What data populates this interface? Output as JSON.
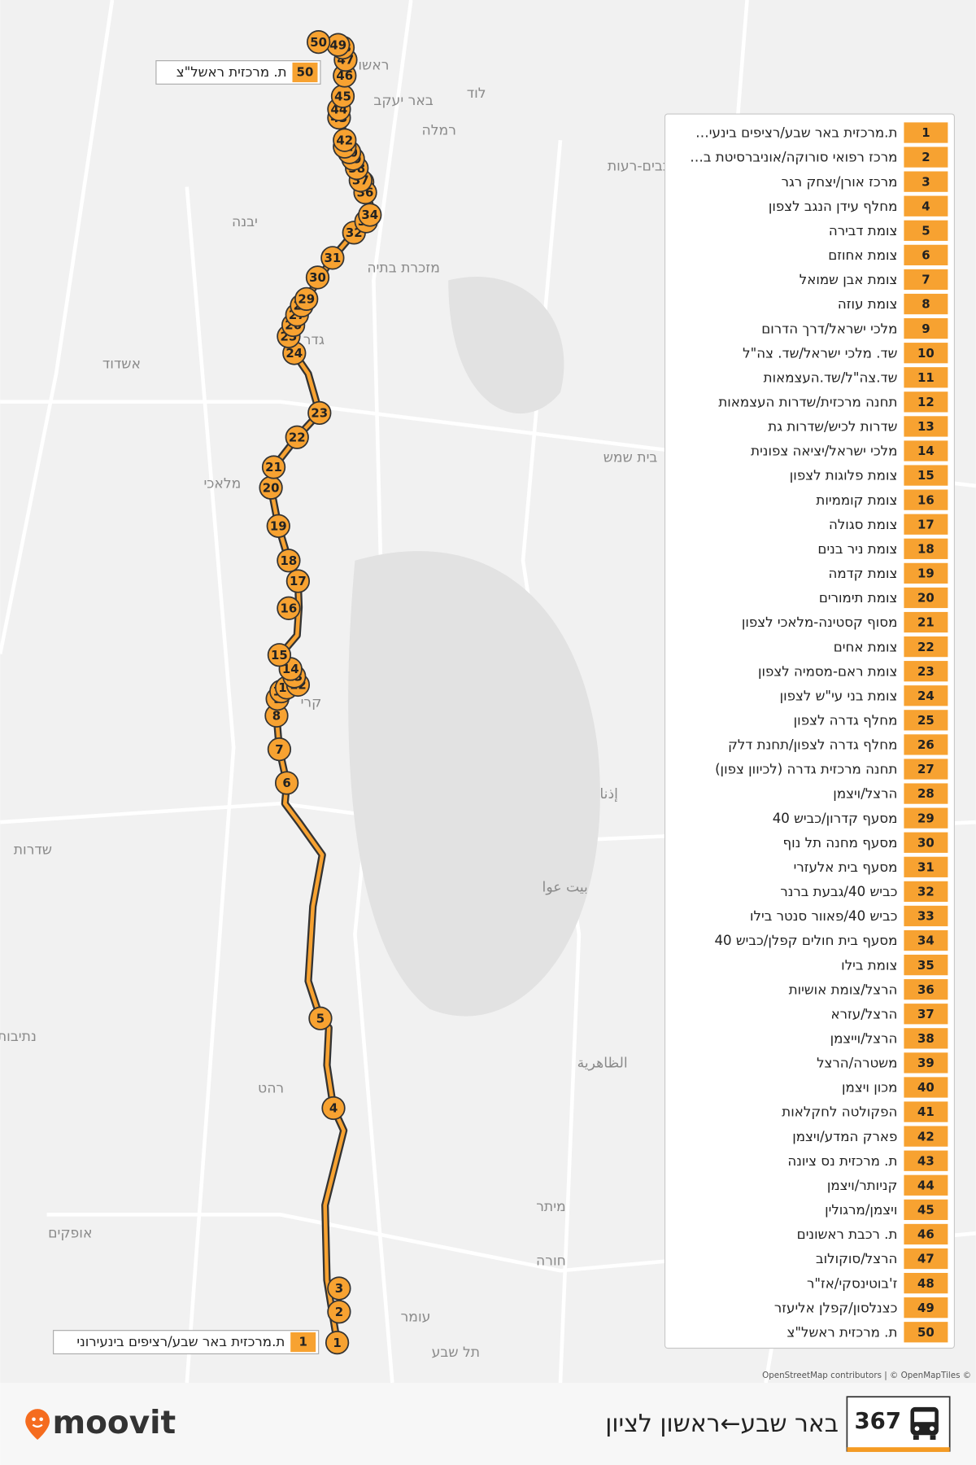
{
  "header": {
    "route_number": "367",
    "title": "באר שבע←ראשון לציון",
    "brand": "moovit"
  },
  "map": {
    "attribution": "OpenStreetMap contributors | © OpenMapTiles ©",
    "places": [
      "ראשו",
      "לוד",
      "באר יעקב",
      "רמלה",
      "כוכבים-רעות",
      "יבנה",
      "מזכרת בתיה",
      "אשדוד",
      "גדר",
      "בית שמש",
      "מלאכי",
      "קרי",
      "שדרות",
      "נתיבות",
      "רהט",
      "الظاهرية",
      "מיתר",
      "אופקים",
      "חורה",
      "עומר",
      "תל שבע",
      "بيت عوا",
      "إذنا"
    ],
    "callouts": [
      {
        "number": 1,
        "name": "ת.מרכזית באר שבע/רציפים בינעירוני"
      },
      {
        "number": 50,
        "name": "ת. מרכזית ראשל\"צ"
      }
    ]
  },
  "stops": [
    {
      "number": 1,
      "name": "ת.מרכזית באר שבע/רציפים בינעי…"
    },
    {
      "number": 2,
      "name": "מרכז רפואי סורוקה/אוניברסיטת ב…"
    },
    {
      "number": 3,
      "name": "מרכז אורן/יצחק רגר"
    },
    {
      "number": 4,
      "name": "מחלף עידן הנגב לצפון"
    },
    {
      "number": 5,
      "name": "צומת דבירה"
    },
    {
      "number": 6,
      "name": "צומת אחוזם"
    },
    {
      "number": 7,
      "name": "צומת אבן שמואל"
    },
    {
      "number": 8,
      "name": "צומת עוזה"
    },
    {
      "number": 9,
      "name": "מלכי ישראל/דרך הדרום"
    },
    {
      "number": 10,
      "name": "שד. מלכי ישראל/שד. צה\"ל"
    },
    {
      "number": 11,
      "name": "שד.צה\"ל/שד.העצמאות"
    },
    {
      "number": 12,
      "name": "תחנה מרכזית/שדרות העצמאות"
    },
    {
      "number": 13,
      "name": "שדרות לכיש/שדרות גת"
    },
    {
      "number": 14,
      "name": "מלכי ישראל/יציאה צפונית"
    },
    {
      "number": 15,
      "name": "צומת פלוגות לצפון"
    },
    {
      "number": 16,
      "name": "צומת קוממיות"
    },
    {
      "number": 17,
      "name": "צומת סגולה"
    },
    {
      "number": 18,
      "name": "צומת ניר בנים"
    },
    {
      "number": 19,
      "name": "צומת קדמה"
    },
    {
      "number": 20,
      "name": "צומת תימורים"
    },
    {
      "number": 21,
      "name": "מסוף קסטינה-מלאכי לצפון"
    },
    {
      "number": 22,
      "name": "צומת אחים"
    },
    {
      "number": 23,
      "name": "צומת ראם-מסמיה לצפון"
    },
    {
      "number": 24,
      "name": "צומת בני עי\"ש לצפון"
    },
    {
      "number": 25,
      "name": "מחלף גדרה לצפון"
    },
    {
      "number": 26,
      "name": "מחלף גדרה לצפון/תחנת דלק"
    },
    {
      "number": 27,
      "name": "תחנה מרכזית גדרה (לכיוון צפון)"
    },
    {
      "number": 28,
      "name": "הרצל/ויצמן"
    },
    {
      "number": 29,
      "name": "מסעף קדרון/כביש 40"
    },
    {
      "number": 30,
      "name": "מסעף מחנה תל נוף"
    },
    {
      "number": 31,
      "name": "מסעף בית אלעזרי"
    },
    {
      "number": 32,
      "name": "כביש 40/גבעת ברנר"
    },
    {
      "number": 33,
      "name": "כביש 40/פאוור סנטר בילו"
    },
    {
      "number": 34,
      "name": "מסעף בית חולים קפלן/כביש 40"
    },
    {
      "number": 35,
      "name": "צומת בילו"
    },
    {
      "number": 36,
      "name": "הרצל/צומת אושיות"
    },
    {
      "number": 37,
      "name": "הרצל/עזרא"
    },
    {
      "number": 38,
      "name": "הרצל/וייצמן"
    },
    {
      "number": 39,
      "name": "משטרה/הרצל"
    },
    {
      "number": 40,
      "name": "מכון ויצמן"
    },
    {
      "number": 41,
      "name": "הפקולטה לחקלאות"
    },
    {
      "number": 42,
      "name": "פארק המדע/ויצמן"
    },
    {
      "number": 43,
      "name": "ת. מרכזית נס ציונה"
    },
    {
      "number": 44,
      "name": "קניותר/ויצמן"
    },
    {
      "number": 45,
      "name": "ויצמן/מרגולין"
    },
    {
      "number": 46,
      "name": "ת. רכבת ראשונים"
    },
    {
      "number": 47,
      "name": "הרצל/סוקולוב"
    },
    {
      "number": 48,
      "name": "ז'בוטינסקי/אז\"ר"
    },
    {
      "number": 49,
      "name": "כצנלסון/קפלן אליעזר"
    },
    {
      "number": 50,
      "name": "ת. מרכזית ראשל\"צ"
    }
  ]
}
